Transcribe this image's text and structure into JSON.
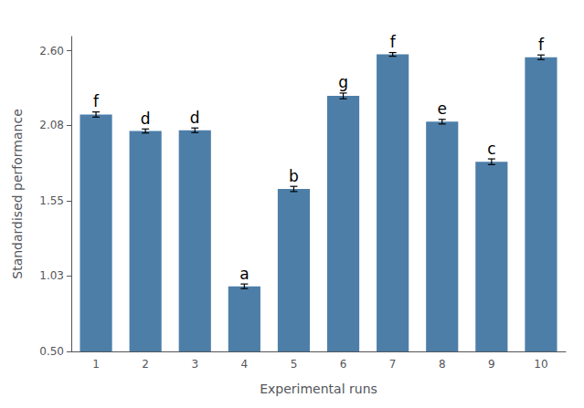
{
  "chart_data": {
    "type": "bar",
    "xlabel": "Experimental runs",
    "ylabel": "Standardised performance",
    "categories": [
      "1",
      "2",
      "3",
      "4",
      "5",
      "6",
      "7",
      "8",
      "9",
      "10"
    ],
    "values": [
      2.155,
      2.04,
      2.045,
      0.955,
      1.635,
      2.285,
      2.575,
      2.105,
      1.825,
      2.555
    ],
    "errors": [
      0.018,
      0.014,
      0.016,
      0.016,
      0.018,
      0.02,
      0.013,
      0.016,
      0.02,
      0.016
    ],
    "annotations": [
      "f",
      "d",
      "d",
      "a",
      "b",
      "g",
      "f",
      "e",
      "c",
      "f"
    ],
    "color": "#4d7ea8",
    "ylim": [
      0.5,
      2.7
    ],
    "yticks": [
      {
        "value": 0.5,
        "label": "0.50"
      },
      1.03,
      1.55,
      2.08,
      {
        "value": 2.6,
        "label": "2.60"
      }
    ],
    "grid": false
  }
}
